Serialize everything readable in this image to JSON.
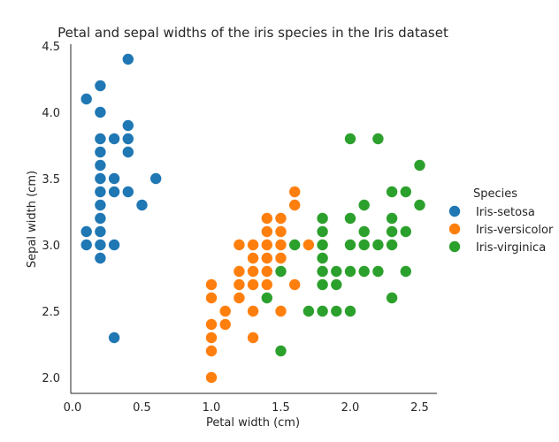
{
  "chart_data": {
    "type": "scatter",
    "title": "Petal and sepal widths of the iris species in the Iris dataset",
    "xlabel": "Petal width (cm)",
    "ylabel": "Sepal width (cm)",
    "xlim": [
      0.0,
      2.6
    ],
    "ylim": [
      1.9,
      4.5
    ],
    "xticks": [
      "0.0",
      "0.5",
      "1.0",
      "1.5",
      "2.0",
      "2.5"
    ],
    "yticks": [
      "2.0",
      "2.5",
      "3.0",
      "3.5",
      "4.0",
      "4.5"
    ],
    "grid": false,
    "legend": {
      "title": "Species",
      "placement": "right"
    },
    "series": [
      {
        "name": "Iris-setosa",
        "color": "#1f77b4",
        "points": [
          [
            0.1,
            4.1
          ],
          [
            0.1,
            3.1
          ],
          [
            0.1,
            3.0
          ],
          [
            0.2,
            4.2
          ],
          [
            0.2,
            4.0
          ],
          [
            0.2,
            3.8
          ],
          [
            0.2,
            3.7
          ],
          [
            0.2,
            3.6
          ],
          [
            0.2,
            3.5
          ],
          [
            0.2,
            3.4
          ],
          [
            0.2,
            3.3
          ],
          [
            0.2,
            3.2
          ],
          [
            0.2,
            3.1
          ],
          [
            0.2,
            3.0
          ],
          [
            0.2,
            2.9
          ],
          [
            0.3,
            3.8
          ],
          [
            0.3,
            3.5
          ],
          [
            0.3,
            3.4
          ],
          [
            0.3,
            3.0
          ],
          [
            0.3,
            2.3
          ],
          [
            0.4,
            4.4
          ],
          [
            0.4,
            3.9
          ],
          [
            0.4,
            3.8
          ],
          [
            0.4,
            3.7
          ],
          [
            0.4,
            3.4
          ],
          [
            0.5,
            3.3
          ],
          [
            0.6,
            3.5
          ]
        ]
      },
      {
        "name": "Iris-versicolor",
        "color": "#ff7f0e",
        "points": [
          [
            1.0,
            2.7
          ],
          [
            1.0,
            2.6
          ],
          [
            1.0,
            2.4
          ],
          [
            1.0,
            2.3
          ],
          [
            1.0,
            2.2
          ],
          [
            1.0,
            2.0
          ],
          [
            1.1,
            2.5
          ],
          [
            1.1,
            2.4
          ],
          [
            1.2,
            3.0
          ],
          [
            1.2,
            2.8
          ],
          [
            1.2,
            2.7
          ],
          [
            1.2,
            2.6
          ],
          [
            1.3,
            3.0
          ],
          [
            1.3,
            2.9
          ],
          [
            1.3,
            2.8
          ],
          [
            1.3,
            2.7
          ],
          [
            1.3,
            2.5
          ],
          [
            1.3,
            2.3
          ],
          [
            1.4,
            3.2
          ],
          [
            1.4,
            3.1
          ],
          [
            1.4,
            3.0
          ],
          [
            1.4,
            2.9
          ],
          [
            1.4,
            2.8
          ],
          [
            1.4,
            2.7
          ],
          [
            1.5,
            3.2
          ],
          [
            1.5,
            3.1
          ],
          [
            1.5,
            3.0
          ],
          [
            1.5,
            2.9
          ],
          [
            1.5,
            2.5
          ],
          [
            1.6,
            3.4
          ],
          [
            1.6,
            3.3
          ],
          [
            1.6,
            2.7
          ],
          [
            1.7,
            3.0
          ]
        ]
      },
      {
        "name": "Iris-virginica",
        "color": "#2ca02c",
        "points": [
          [
            1.4,
            2.6
          ],
          [
            1.5,
            2.8
          ],
          [
            1.5,
            2.2
          ],
          [
            1.6,
            3.0
          ],
          [
            1.7,
            2.5
          ],
          [
            1.8,
            3.2
          ],
          [
            1.8,
            3.1
          ],
          [
            1.8,
            3.0
          ],
          [
            1.8,
            2.9
          ],
          [
            1.8,
            2.8
          ],
          [
            1.8,
            2.7
          ],
          [
            1.8,
            2.5
          ],
          [
            1.9,
            2.8
          ],
          [
            1.9,
            2.7
          ],
          [
            1.9,
            2.5
          ],
          [
            2.0,
            3.8
          ],
          [
            2.0,
            3.2
          ],
          [
            2.0,
            3.0
          ],
          [
            2.0,
            2.8
          ],
          [
            2.0,
            2.5
          ],
          [
            2.1,
            3.3
          ],
          [
            2.1,
            3.1
          ],
          [
            2.1,
            3.0
          ],
          [
            2.1,
            2.8
          ],
          [
            2.2,
            3.8
          ],
          [
            2.2,
            3.0
          ],
          [
            2.2,
            2.8
          ],
          [
            2.3,
            3.4
          ],
          [
            2.3,
            3.2
          ],
          [
            2.3,
            3.1
          ],
          [
            2.3,
            3.0
          ],
          [
            2.3,
            2.6
          ],
          [
            2.4,
            3.4
          ],
          [
            2.4,
            3.1
          ],
          [
            2.4,
            2.8
          ],
          [
            2.5,
            3.6
          ],
          [
            2.5,
            3.3
          ]
        ]
      }
    ]
  }
}
